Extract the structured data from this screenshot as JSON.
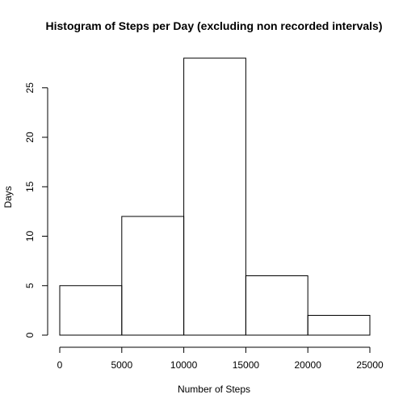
{
  "chart_data": {
    "type": "bar",
    "title": "Histogram of Steps per Day (excluding non recorded intervals)",
    "xlabel": "Number of Steps",
    "ylabel": "Days",
    "bins": [
      {
        "from": 0,
        "to": 5000,
        "count": 5
      },
      {
        "from": 5000,
        "to": 10000,
        "count": 12
      },
      {
        "from": 10000,
        "to": 15000,
        "count": 28
      },
      {
        "from": 15000,
        "to": 20000,
        "count": 6
      },
      {
        "from": 20000,
        "to": 25000,
        "count": 2
      }
    ],
    "xlim": [
      0,
      25000
    ],
    "ylim": [
      0,
      28
    ],
    "x_ticks": [
      0,
      5000,
      10000,
      15000,
      20000,
      25000
    ],
    "y_ticks": [
      0,
      5,
      10,
      15,
      20,
      25
    ],
    "grid": false,
    "colors": {
      "bar_fill": "#ffffff",
      "bar_stroke": "#000000"
    }
  }
}
